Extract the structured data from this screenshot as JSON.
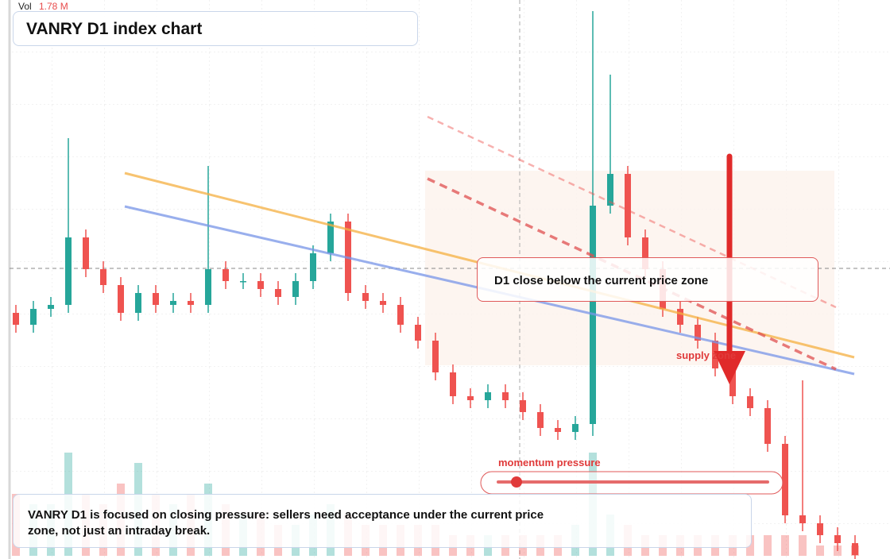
{
  "chart_data": {
    "type": "candlestick",
    "title": "VANRY D1 index chart",
    "volume_label": "Vol",
    "volume_value_label": "1.78 M",
    "callout": "D1 close below the current price zone",
    "zone_label": "supply zone",
    "momentum_label": "momentum pressure",
    "note": "VANRY D1 is focused on closing pressure: sellers need acceptance under the current price zone, not just an intraday break.",
    "up_color": "#26a69a",
    "down_color": "#ef5350",
    "open": [
      62,
      59,
      63,
      64,
      81,
      73,
      69,
      62,
      67,
      64,
      65,
      64,
      73,
      70,
      70,
      68,
      66,
      70,
      77,
      85,
      67,
      65,
      64,
      59,
      55,
      47,
      41,
      40,
      42,
      40,
      37,
      33,
      32,
      34,
      89,
      97,
      81,
      73,
      63,
      59,
      55,
      48,
      41,
      38,
      29,
      11,
      9,
      6,
      4
    ],
    "high": [
      64,
      65,
      66,
      106,
      83,
      75,
      71,
      69,
      69,
      67,
      67,
      99,
      75,
      72,
      72,
      70,
      72,
      79,
      87,
      87,
      69,
      67,
      66,
      61,
      57,
      49,
      43,
      44,
      44,
      42,
      39,
      35,
      36,
      138,
      122,
      99,
      83,
      75,
      65,
      61,
      57,
      50,
      43,
      40,
      31,
      45,
      11,
      8,
      6
    ],
    "low": [
      57,
      57,
      61,
      62,
      71,
      67,
      60,
      60,
      62,
      62,
      62,
      62,
      68,
      68,
      66,
      64,
      64,
      68,
      75,
      65,
      63,
      62,
      57,
      53,
      45,
      39,
      38,
      38,
      38,
      35,
      31,
      30,
      30,
      31,
      87,
      79,
      71,
      61,
      57,
      53,
      46,
      39,
      36,
      27,
      9,
      7,
      4,
      2,
      0
    ],
    "close": [
      59,
      63,
      64,
      81,
      73,
      69,
      62,
      67,
      64,
      65,
      64,
      73,
      70,
      70,
      68,
      66,
      70,
      77,
      85,
      67,
      65,
      64,
      59,
      55,
      47,
      41,
      40,
      42,
      40,
      37,
      33,
      32,
      34,
      89,
      97,
      81,
      73,
      63,
      59,
      55,
      48,
      41,
      38,
      29,
      11,
      9,
      6,
      4,
      1
    ],
    "volume": [
      0.6,
      0.5,
      0.5,
      1.0,
      0.6,
      0.5,
      0.7,
      0.9,
      0.6,
      0.5,
      0.6,
      0.7,
      0.5,
      0.4,
      0.4,
      0.3,
      0.3,
      0.4,
      0.5,
      0.4,
      0.3,
      0.3,
      0.3,
      0.3,
      0.3,
      0.2,
      0.2,
      0.2,
      0.2,
      0.2,
      0.2,
      0.2,
      0.3,
      1.0,
      0.4,
      0.3,
      0.2,
      0.2,
      0.2,
      0.2,
      0.2,
      0.2,
      0.2,
      0.2,
      0.2,
      0.2,
      0.1,
      0.1,
      0.1
    ]
  }
}
